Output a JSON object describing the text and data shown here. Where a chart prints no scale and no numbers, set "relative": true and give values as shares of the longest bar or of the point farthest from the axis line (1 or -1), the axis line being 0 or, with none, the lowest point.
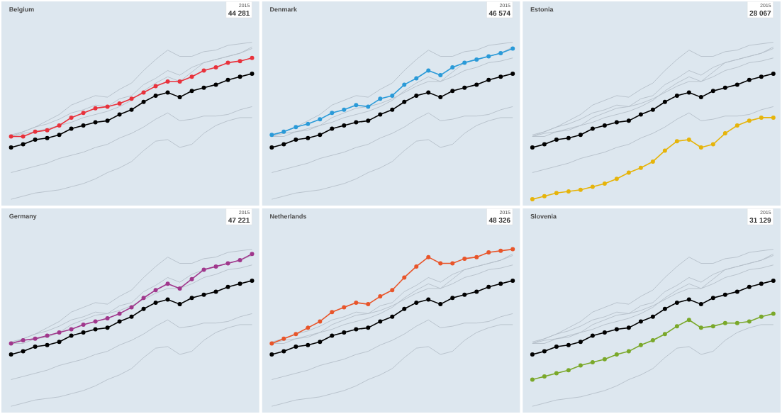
{
  "chart_data": [
    {
      "type": "line",
      "relative": true,
      "title": "Belgium",
      "categories": [
        null,
        null,
        null,
        null,
        null,
        null,
        null,
        null,
        null,
        null,
        null,
        null,
        null,
        null,
        null,
        null,
        null,
        null,
        null,
        null,
        null
      ],
      "series": [
        {
          "color": "#b4bec8",
          "marker": "none",
          "values": [
            0.41,
            0.43,
            0.46,
            0.48,
            0.51,
            0.55,
            0.57,
            0.6,
            0.59,
            0.64,
            0.66,
            0.73,
            0.77,
            0.82,
            0.79,
            0.84,
            0.87,
            0.89,
            0.91,
            0.93,
            0.96
          ]
        },
        {
          "color": "#b4bec8",
          "marker": "none",
          "values": [
            0,
            0.02,
            0.04,
            0.05,
            0.06,
            0.08,
            0.1,
            0.13,
            0.17,
            0.2,
            0.24,
            0.31,
            0.37,
            0.38,
            0.33,
            0.35,
            0.42,
            0.47,
            0.5,
            0.52,
            0.52
          ]
        },
        {
          "color": "#b4bec8",
          "marker": "none",
          "values": [
            0.4,
            0.42,
            0.43,
            0.45,
            0.47,
            0.49,
            0.52,
            0.54,
            0.56,
            0.59,
            0.63,
            0.69,
            0.74,
            0.78,
            0.75,
            0.81,
            0.87,
            0.89,
            0.91,
            0.93,
            0.97
          ]
        },
        {
          "color": "#b4bec8",
          "marker": "none",
          "values": [
            0.4,
            0.43,
            0.46,
            0.5,
            0.54,
            0.6,
            0.63,
            0.66,
            0.65,
            0.7,
            0.74,
            0.82,
            0.89,
            0.95,
            0.91,
            0.91,
            0.94,
            0.95,
            0.98,
            0.99,
            1
          ]
        },
        {
          "color": "#b4bec8",
          "marker": "none",
          "values": [
            0.17,
            0.19,
            0.21,
            0.23,
            0.26,
            0.28,
            0.3,
            0.33,
            0.35,
            0.39,
            0.42,
            0.46,
            0.51,
            0.55,
            0.5,
            0.51,
            0.53,
            0.53,
            0.54,
            0.57,
            0.59
          ]
        },
        {
          "color": "#000000",
          "marker": "circle",
          "values": [
            0.33,
            0.35,
            0.38,
            0.39,
            0.41,
            0.45,
            0.47,
            0.49,
            0.5,
            0.54,
            0.57,
            0.62,
            0.66,
            0.68,
            0.65,
            0.69,
            0.71,
            0.73,
            0.76,
            0.78,
            0.8
          ]
        },
        {
          "color": "#e8323c",
          "marker": "circle",
          "values": [
            0.4,
            0.4,
            0.43,
            0.44,
            0.47,
            0.52,
            0.55,
            0.58,
            0.59,
            0.61,
            0.64,
            0.68,
            0.72,
            0.75,
            0.75,
            0.78,
            0.82,
            0.84,
            0.87,
            0.88,
            0.9
          ]
        }
      ],
      "annotations": [
        "2015",
        "44 281"
      ]
    },
    {
      "type": "line",
      "relative": true,
      "title": "Denmark",
      "categories": [
        null,
        null,
        null,
        null,
        null,
        null,
        null,
        null,
        null,
        null,
        null,
        null,
        null,
        null,
        null,
        null,
        null,
        null,
        null,
        null,
        null
      ],
      "series": [
        {
          "color": "#b4bec8",
          "marker": "none",
          "values": [
            0.4,
            0.4,
            0.43,
            0.44,
            0.47,
            0.52,
            0.55,
            0.58,
            0.59,
            0.61,
            0.64,
            0.68,
            0.72,
            0.75,
            0.75,
            0.78,
            0.82,
            0.84,
            0.87,
            0.88,
            0.9
          ]
        },
        {
          "color": "#b4bec8",
          "marker": "none",
          "values": [
            0,
            0.02,
            0.04,
            0.05,
            0.06,
            0.08,
            0.1,
            0.13,
            0.17,
            0.2,
            0.24,
            0.31,
            0.37,
            0.38,
            0.33,
            0.35,
            0.42,
            0.47,
            0.5,
            0.52,
            0.52
          ]
        },
        {
          "color": "#b4bec8",
          "marker": "none",
          "values": [
            0.4,
            0.42,
            0.43,
            0.45,
            0.47,
            0.49,
            0.52,
            0.54,
            0.56,
            0.59,
            0.63,
            0.69,
            0.74,
            0.78,
            0.75,
            0.81,
            0.87,
            0.89,
            0.91,
            0.93,
            0.97
          ]
        },
        {
          "color": "#b4bec8",
          "marker": "none",
          "values": [
            0.4,
            0.43,
            0.46,
            0.5,
            0.54,
            0.6,
            0.63,
            0.66,
            0.65,
            0.7,
            0.74,
            0.82,
            0.89,
            0.95,
            0.91,
            0.91,
            0.94,
            0.95,
            0.98,
            0.99,
            1
          ]
        },
        {
          "color": "#b4bec8",
          "marker": "none",
          "values": [
            0.17,
            0.19,
            0.21,
            0.23,
            0.26,
            0.28,
            0.3,
            0.33,
            0.35,
            0.39,
            0.42,
            0.46,
            0.51,
            0.55,
            0.5,
            0.51,
            0.53,
            0.53,
            0.54,
            0.57,
            0.59
          ]
        },
        {
          "color": "#000000",
          "marker": "circle",
          "values": [
            0.33,
            0.35,
            0.38,
            0.39,
            0.41,
            0.45,
            0.47,
            0.49,
            0.5,
            0.54,
            0.57,
            0.62,
            0.66,
            0.68,
            0.65,
            0.69,
            0.71,
            0.73,
            0.76,
            0.78,
            0.8
          ]
        },
        {
          "color": "#2a9ad8",
          "marker": "circle",
          "values": [
            0.41,
            0.43,
            0.46,
            0.48,
            0.51,
            0.55,
            0.57,
            0.6,
            0.59,
            0.64,
            0.66,
            0.73,
            0.77,
            0.82,
            0.79,
            0.84,
            0.87,
            0.89,
            0.91,
            0.93,
            0.96
          ]
        }
      ],
      "annotations": [
        "2015",
        "46 574"
      ]
    },
    {
      "type": "line",
      "relative": true,
      "title": "Estonia",
      "categories": [
        null,
        null,
        null,
        null,
        null,
        null,
        null,
        null,
        null,
        null,
        null,
        null,
        null,
        null,
        null,
        null,
        null,
        null,
        null,
        null,
        null
      ],
      "series": [
        {
          "color": "#b4bec8",
          "marker": "none",
          "values": [
            0.4,
            0.4,
            0.43,
            0.44,
            0.47,
            0.52,
            0.55,
            0.58,
            0.59,
            0.61,
            0.64,
            0.68,
            0.72,
            0.75,
            0.75,
            0.78,
            0.82,
            0.84,
            0.87,
            0.88,
            0.9
          ]
        },
        {
          "color": "#b4bec8",
          "marker": "none",
          "values": [
            0.41,
            0.43,
            0.46,
            0.48,
            0.51,
            0.55,
            0.57,
            0.6,
            0.59,
            0.64,
            0.66,
            0.73,
            0.77,
            0.82,
            0.79,
            0.84,
            0.87,
            0.89,
            0.91,
            0.93,
            0.96
          ]
        },
        {
          "color": "#b4bec8",
          "marker": "none",
          "values": [
            0.4,
            0.42,
            0.43,
            0.45,
            0.47,
            0.49,
            0.52,
            0.54,
            0.56,
            0.59,
            0.63,
            0.69,
            0.74,
            0.78,
            0.75,
            0.81,
            0.87,
            0.89,
            0.91,
            0.93,
            0.97
          ]
        },
        {
          "color": "#b4bec8",
          "marker": "none",
          "values": [
            0.4,
            0.43,
            0.46,
            0.5,
            0.54,
            0.6,
            0.63,
            0.66,
            0.65,
            0.7,
            0.74,
            0.82,
            0.89,
            0.95,
            0.91,
            0.91,
            0.94,
            0.95,
            0.98,
            0.99,
            1
          ]
        },
        {
          "color": "#b4bec8",
          "marker": "none",
          "values": [
            0.17,
            0.19,
            0.21,
            0.23,
            0.26,
            0.28,
            0.3,
            0.33,
            0.35,
            0.39,
            0.42,
            0.46,
            0.51,
            0.55,
            0.5,
            0.51,
            0.53,
            0.53,
            0.54,
            0.57,
            0.59
          ]
        },
        {
          "color": "#000000",
          "marker": "circle",
          "values": [
            0.33,
            0.35,
            0.38,
            0.39,
            0.41,
            0.45,
            0.47,
            0.49,
            0.5,
            0.54,
            0.57,
            0.62,
            0.66,
            0.68,
            0.65,
            0.69,
            0.71,
            0.73,
            0.76,
            0.78,
            0.8
          ]
        },
        {
          "color": "#e6b40a",
          "marker": "circle",
          "values": [
            0,
            0.02,
            0.04,
            0.05,
            0.06,
            0.08,
            0.1,
            0.13,
            0.17,
            0.2,
            0.24,
            0.31,
            0.37,
            0.38,
            0.33,
            0.35,
            0.42,
            0.47,
            0.5,
            0.52,
            0.52
          ]
        }
      ],
      "annotations": [
        "2015",
        "28 067"
      ]
    },
    {
      "type": "line",
      "relative": true,
      "title": "Germany",
      "categories": [
        null,
        null,
        null,
        null,
        null,
        null,
        null,
        null,
        null,
        null,
        null,
        null,
        null,
        null,
        null,
        null,
        null,
        null,
        null,
        null,
        null
      ],
      "series": [
        {
          "color": "#b4bec8",
          "marker": "none",
          "values": [
            0.4,
            0.4,
            0.43,
            0.44,
            0.47,
            0.52,
            0.55,
            0.58,
            0.59,
            0.61,
            0.64,
            0.68,
            0.72,
            0.75,
            0.75,
            0.78,
            0.82,
            0.84,
            0.87,
            0.88,
            0.9
          ]
        },
        {
          "color": "#b4bec8",
          "marker": "none",
          "values": [
            0.41,
            0.43,
            0.46,
            0.48,
            0.51,
            0.55,
            0.57,
            0.6,
            0.59,
            0.64,
            0.66,
            0.73,
            0.77,
            0.82,
            0.79,
            0.84,
            0.87,
            0.89,
            0.91,
            0.93,
            0.96
          ]
        },
        {
          "color": "#b4bec8",
          "marker": "none",
          "values": [
            0,
            0.02,
            0.04,
            0.05,
            0.06,
            0.08,
            0.1,
            0.13,
            0.17,
            0.2,
            0.24,
            0.31,
            0.37,
            0.38,
            0.33,
            0.35,
            0.42,
            0.47,
            0.5,
            0.52,
            0.52
          ]
        },
        {
          "color": "#b4bec8",
          "marker": "none",
          "values": [
            0.4,
            0.43,
            0.46,
            0.5,
            0.54,
            0.6,
            0.63,
            0.66,
            0.65,
            0.7,
            0.74,
            0.82,
            0.89,
            0.95,
            0.91,
            0.91,
            0.94,
            0.95,
            0.98,
            0.99,
            1
          ]
        },
        {
          "color": "#b4bec8",
          "marker": "none",
          "values": [
            0.17,
            0.19,
            0.21,
            0.23,
            0.26,
            0.28,
            0.3,
            0.33,
            0.35,
            0.39,
            0.42,
            0.46,
            0.51,
            0.55,
            0.5,
            0.51,
            0.53,
            0.53,
            0.54,
            0.57,
            0.59
          ]
        },
        {
          "color": "#000000",
          "marker": "circle",
          "values": [
            0.33,
            0.35,
            0.38,
            0.39,
            0.41,
            0.45,
            0.47,
            0.49,
            0.5,
            0.54,
            0.57,
            0.62,
            0.66,
            0.68,
            0.65,
            0.69,
            0.71,
            0.73,
            0.76,
            0.78,
            0.8
          ]
        },
        {
          "color": "#a0378c",
          "marker": "circle",
          "values": [
            0.4,
            0.42,
            0.43,
            0.45,
            0.47,
            0.49,
            0.52,
            0.54,
            0.56,
            0.59,
            0.63,
            0.69,
            0.74,
            0.78,
            0.75,
            0.81,
            0.87,
            0.89,
            0.91,
            0.93,
            0.97
          ]
        }
      ],
      "annotations": [
        "2015",
        "47 221"
      ]
    },
    {
      "type": "line",
      "relative": true,
      "title": "Netherlands",
      "categories": [
        null,
        null,
        null,
        null,
        null,
        null,
        null,
        null,
        null,
        null,
        null,
        null,
        null,
        null,
        null,
        null,
        null,
        null,
        null,
        null,
        null
      ],
      "series": [
        {
          "color": "#b4bec8",
          "marker": "none",
          "values": [
            0.4,
            0.4,
            0.43,
            0.44,
            0.47,
            0.52,
            0.55,
            0.58,
            0.59,
            0.61,
            0.64,
            0.68,
            0.72,
            0.75,
            0.75,
            0.78,
            0.82,
            0.84,
            0.87,
            0.88,
            0.9
          ]
        },
        {
          "color": "#b4bec8",
          "marker": "none",
          "values": [
            0.41,
            0.43,
            0.46,
            0.48,
            0.51,
            0.55,
            0.57,
            0.6,
            0.59,
            0.64,
            0.66,
            0.73,
            0.77,
            0.82,
            0.79,
            0.84,
            0.87,
            0.89,
            0.91,
            0.93,
            0.96
          ]
        },
        {
          "color": "#b4bec8",
          "marker": "none",
          "values": [
            0,
            0.02,
            0.04,
            0.05,
            0.06,
            0.08,
            0.1,
            0.13,
            0.17,
            0.2,
            0.24,
            0.31,
            0.37,
            0.38,
            0.33,
            0.35,
            0.42,
            0.47,
            0.5,
            0.52,
            0.52
          ]
        },
        {
          "color": "#b4bec8",
          "marker": "none",
          "values": [
            0.4,
            0.42,
            0.43,
            0.45,
            0.47,
            0.49,
            0.52,
            0.54,
            0.56,
            0.59,
            0.63,
            0.69,
            0.74,
            0.78,
            0.75,
            0.81,
            0.87,
            0.89,
            0.91,
            0.93,
            0.97
          ]
        },
        {
          "color": "#b4bec8",
          "marker": "none",
          "values": [
            0.17,
            0.19,
            0.21,
            0.23,
            0.26,
            0.28,
            0.3,
            0.33,
            0.35,
            0.39,
            0.42,
            0.46,
            0.51,
            0.55,
            0.5,
            0.51,
            0.53,
            0.53,
            0.54,
            0.57,
            0.59
          ]
        },
        {
          "color": "#000000",
          "marker": "circle",
          "values": [
            0.33,
            0.35,
            0.38,
            0.39,
            0.41,
            0.45,
            0.47,
            0.49,
            0.5,
            0.54,
            0.57,
            0.62,
            0.66,
            0.68,
            0.65,
            0.69,
            0.71,
            0.73,
            0.76,
            0.78,
            0.8
          ]
        },
        {
          "color": "#e8552a",
          "marker": "circle",
          "values": [
            0.4,
            0.43,
            0.46,
            0.5,
            0.54,
            0.6,
            0.63,
            0.66,
            0.65,
            0.7,
            0.74,
            0.82,
            0.89,
            0.95,
            0.91,
            0.91,
            0.94,
            0.95,
            0.98,
            0.99,
            1
          ]
        }
      ],
      "annotations": [
        "2015",
        "48 326"
      ]
    },
    {
      "type": "line",
      "relative": true,
      "title": "Slovenia",
      "categories": [
        null,
        null,
        null,
        null,
        null,
        null,
        null,
        null,
        null,
        null,
        null,
        null,
        null,
        null,
        null,
        null,
        null,
        null,
        null,
        null,
        null
      ],
      "series": [
        {
          "color": "#b4bec8",
          "marker": "none",
          "values": [
            0.4,
            0.4,
            0.43,
            0.44,
            0.47,
            0.52,
            0.55,
            0.58,
            0.59,
            0.61,
            0.64,
            0.68,
            0.72,
            0.75,
            0.75,
            0.78,
            0.82,
            0.84,
            0.87,
            0.88,
            0.9
          ]
        },
        {
          "color": "#b4bec8",
          "marker": "none",
          "values": [
            0.41,
            0.43,
            0.46,
            0.48,
            0.51,
            0.55,
            0.57,
            0.6,
            0.59,
            0.64,
            0.66,
            0.73,
            0.77,
            0.82,
            0.79,
            0.84,
            0.87,
            0.89,
            0.91,
            0.93,
            0.96
          ]
        },
        {
          "color": "#b4bec8",
          "marker": "none",
          "values": [
            0,
            0.02,
            0.04,
            0.05,
            0.06,
            0.08,
            0.1,
            0.13,
            0.17,
            0.2,
            0.24,
            0.31,
            0.37,
            0.38,
            0.33,
            0.35,
            0.42,
            0.47,
            0.5,
            0.52,
            0.52
          ]
        },
        {
          "color": "#b4bec8",
          "marker": "none",
          "values": [
            0.4,
            0.42,
            0.43,
            0.45,
            0.47,
            0.49,
            0.52,
            0.54,
            0.56,
            0.59,
            0.63,
            0.69,
            0.74,
            0.78,
            0.75,
            0.81,
            0.87,
            0.89,
            0.91,
            0.93,
            0.97
          ]
        },
        {
          "color": "#b4bec8",
          "marker": "none",
          "values": [
            0.4,
            0.43,
            0.46,
            0.5,
            0.54,
            0.6,
            0.63,
            0.66,
            0.65,
            0.7,
            0.74,
            0.82,
            0.89,
            0.95,
            0.91,
            0.91,
            0.94,
            0.95,
            0.98,
            0.99,
            1
          ]
        },
        {
          "color": "#000000",
          "marker": "circle",
          "values": [
            0.33,
            0.35,
            0.38,
            0.39,
            0.41,
            0.45,
            0.47,
            0.49,
            0.5,
            0.54,
            0.57,
            0.62,
            0.66,
            0.68,
            0.65,
            0.69,
            0.71,
            0.73,
            0.76,
            0.78,
            0.8
          ]
        },
        {
          "color": "#7aa82a",
          "marker": "circle",
          "values": [
            0.17,
            0.19,
            0.21,
            0.23,
            0.26,
            0.28,
            0.3,
            0.33,
            0.35,
            0.39,
            0.42,
            0.46,
            0.51,
            0.55,
            0.5,
            0.51,
            0.53,
            0.53,
            0.54,
            0.57,
            0.59
          ]
        }
      ],
      "annotations": [
        "2015",
        "31 129"
      ]
    }
  ]
}
